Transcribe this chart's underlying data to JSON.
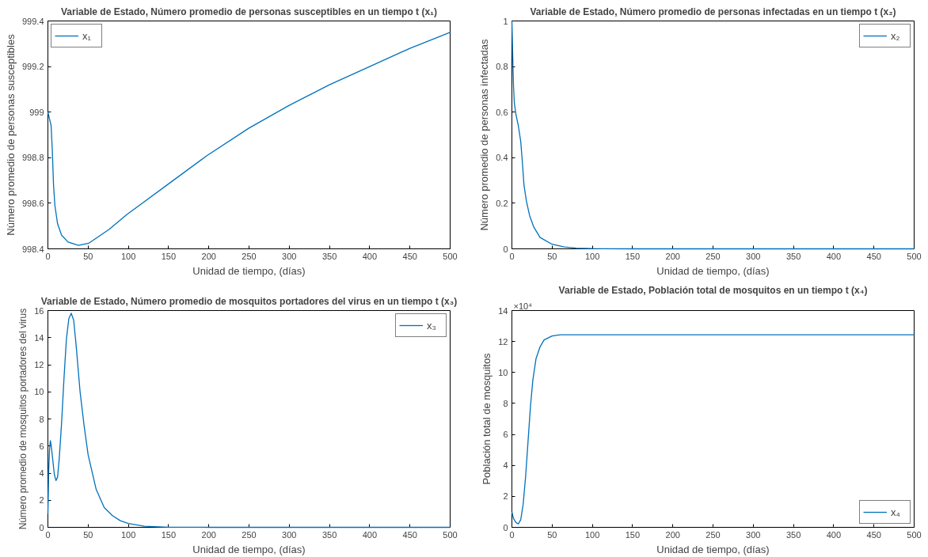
{
  "chart_data": [
    {
      "type": "line",
      "title": "Variable de Estado, Número promedio de personas susceptibles en un tiempo t (x₁)",
      "xlabel": "Unidad de tiempo, (días)",
      "ylabel": "Número promedio de personas susceptibles",
      "xlim": [
        0,
        500
      ],
      "xticks": [
        0,
        50,
        100,
        150,
        200,
        250,
        300,
        350,
        400,
        450,
        500
      ],
      "ylim": [
        998.4,
        999.4
      ],
      "yticks": [
        998.4,
        998.6,
        998.8,
        999,
        999.2,
        999.4
      ],
      "legend": "top left",
      "series": [
        {
          "name": "x₁",
          "color": "#0072bd",
          "x": [
            0,
            4,
            5.5,
            7,
            8.7,
            12,
            17,
            25,
            38,
            51,
            76,
            98,
            148,
            198,
            250,
            300,
            350,
            400,
            450,
            500
          ],
          "values": [
            999.0,
            998.94,
            998.83,
            998.68,
            998.59,
            998.51,
            998.46,
            998.43,
            998.415,
            998.425,
            998.485,
            998.55,
            998.68,
            998.81,
            998.93,
            999.03,
            999.12,
            999.2,
            999.28,
            999.35
          ]
        }
      ]
    },
    {
      "type": "line",
      "title": "Variable de Estado, Número promedio de personas infectadas en un tiempo t (x₂)",
      "xlabel": "Unidad de tiempo, (días)",
      "ylabel": "Número promedio de personas infectadas",
      "xlim": [
        0,
        500
      ],
      "xticks": [
        0,
        50,
        100,
        150,
        200,
        250,
        300,
        350,
        400,
        450,
        500
      ],
      "ylim": [
        0,
        1
      ],
      "yticks": [
        0,
        0.2,
        0.4,
        0.6,
        0.8,
        1
      ],
      "legend": "top right",
      "series": [
        {
          "name": "x₂",
          "color": "#0072bd",
          "x": [
            0,
            1,
            2,
            3,
            5,
            8,
            11,
            13,
            15,
            18,
            22,
            27,
            35,
            50,
            65,
            80,
            100,
            150,
            200,
            300,
            400,
            500
          ],
          "values": [
            1.0,
            0.85,
            0.715,
            0.64,
            0.59,
            0.54,
            0.47,
            0.38,
            0.28,
            0.21,
            0.146,
            0.097,
            0.05,
            0.02,
            0.008,
            0.003,
            0.001,
            0,
            0,
            0,
            0,
            0
          ]
        }
      ]
    },
    {
      "type": "line",
      "title": "Variable de Estado, Número promedio de mosquitos portadores del virus en un tiempo t (x₃)",
      "xlabel": "Unidad de tiempo, (días)",
      "ylabel": "Número promedio de mosquitos portadores del virus",
      "xlim": [
        0,
        500
      ],
      "xticks": [
        0,
        50,
        100,
        150,
        200,
        250,
        300,
        350,
        400,
        450,
        500
      ],
      "ylim": [
        0,
        16
      ],
      "yticks": [
        0,
        2,
        4,
        6,
        8,
        10,
        12,
        14,
        16
      ],
      "legend": "top right",
      "series": [
        {
          "name": "x₃",
          "color": "#0072bd",
          "x": [
            0,
            1,
            2,
            3,
            4,
            6,
            8,
            10,
            12,
            14,
            17,
            20,
            23,
            26,
            29,
            32,
            35,
            40,
            45,
            50,
            60,
            70,
            80,
            90,
            100,
            120,
            150,
            200,
            300,
            400,
            500
          ],
          "values": [
            1.0,
            4.2,
            5.7,
            6.4,
            6.1,
            5.0,
            3.9,
            3.45,
            3.7,
            5.0,
            7.7,
            11,
            13.9,
            15.4,
            15.8,
            15.3,
            13.5,
            10.0,
            7.5,
            5.35,
            2.8,
            1.46,
            0.88,
            0.49,
            0.29,
            0.08,
            0.01,
            0,
            0,
            0,
            0
          ]
        }
      ]
    },
    {
      "type": "line",
      "title": "Variable de Estado, Población total de mosquitos en un tiempo t (x₄)",
      "xlabel": "Unidad de tiempo, (días)",
      "ylabel": "Población total de mosquitos",
      "xlim": [
        0,
        500
      ],
      "xticks": [
        0,
        50,
        100,
        150,
        200,
        250,
        300,
        350,
        400,
        450,
        500
      ],
      "ylim": [
        0,
        14
      ],
      "yticks": [
        0,
        2,
        4,
        6,
        8,
        10,
        12,
        14
      ],
      "legend": "bottom right",
      "annotations": [
        "×10⁴"
      ],
      "series": [
        {
          "name": "x₄",
          "color": "#0072bd",
          "x": [
            0,
            2,
            5,
            8,
            11,
            14,
            17,
            20,
            23,
            26,
            30,
            35,
            40,
            50,
            60,
            100,
            200,
            300,
            400,
            500
          ],
          "values": [
            1.0,
            0.57,
            0.31,
            0.22,
            0.49,
            1.5,
            3.26,
            5.5,
            7.76,
            9.5,
            10.9,
            11.66,
            12.1,
            12.36,
            12.44,
            12.44,
            12.44,
            12.44,
            12.44,
            12.44
          ]
        }
      ]
    }
  ]
}
